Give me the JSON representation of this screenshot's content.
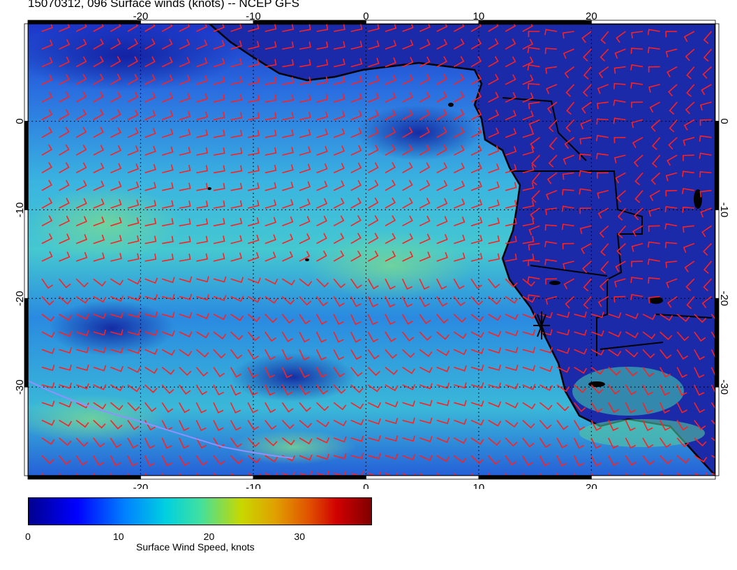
{
  "title": "15070312, 096 Surface winds (knots) -- NCEP GFS",
  "map": {
    "lon_range": [
      -30,
      31
    ],
    "lat_range": [
      -40,
      11
    ],
    "lon_ticks": [
      "-20",
      "-10",
      "0",
      "10",
      "20"
    ],
    "lat_ticks": [
      "0",
      "-10",
      "-20",
      "-30"
    ],
    "colors": {
      "barb": "#ff2020",
      "coast": "#000000",
      "ocean_low": "#1a2fcf",
      "ocean_mid": "#2c8fe0",
      "ocean_high": "#3cc8d0"
    }
  },
  "colorbar": {
    "ticks": [
      "0",
      "10",
      "20",
      "30"
    ],
    "tick_values": [
      0,
      10,
      20,
      30
    ],
    "range": [
      0,
      38
    ],
    "label": "Surface Wind Speed, knots"
  }
}
